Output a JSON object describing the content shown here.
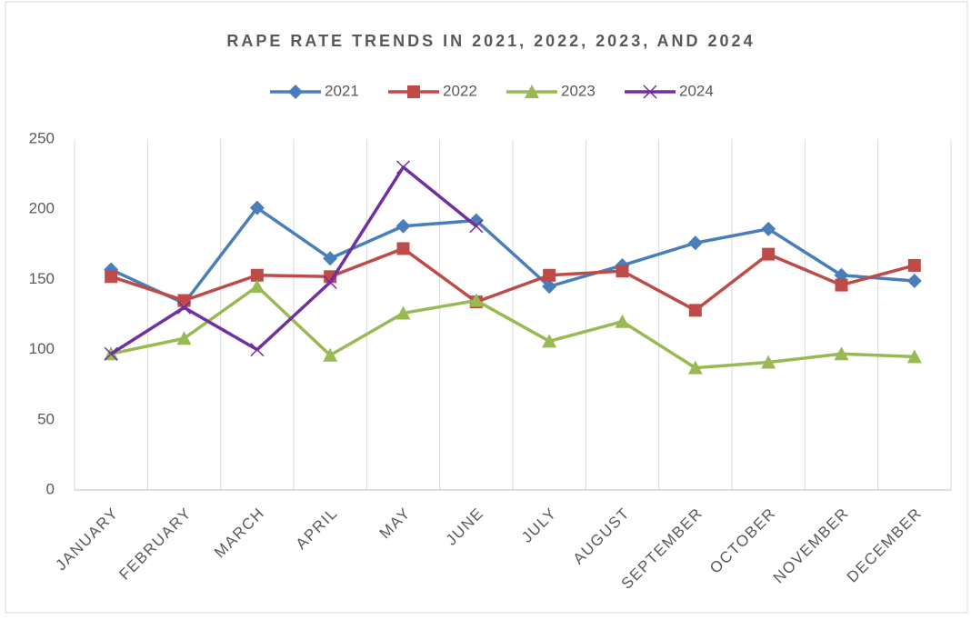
{
  "chart_data": {
    "type": "line",
    "title": "RAPE RATE TRENDS IN 2021, 2022, 2023, AND 2024",
    "categories": [
      "JANUARY",
      "FEBRUARY",
      "MARCH",
      "APRIL",
      "MAY",
      "JUNE",
      "JULY",
      "AUGUST",
      "SEPTEMBER",
      "OCTOBER",
      "NOVEMBER",
      "DECEMBER"
    ],
    "series": [
      {
        "name": "2021",
        "color": "#4a7ebb",
        "marker": "diamond",
        "values": [
          157,
          133,
          201,
          165,
          188,
          192,
          145,
          160,
          176,
          186,
          153,
          149
        ]
      },
      {
        "name": "2022",
        "color": "#be4b48",
        "marker": "square",
        "values": [
          152,
          135,
          153,
          152,
          172,
          134,
          153,
          156,
          128,
          168,
          146,
          160
        ]
      },
      {
        "name": "2023",
        "color": "#98b954",
        "marker": "triangle",
        "values": [
          97,
          108,
          145,
          96,
          126,
          135,
          106,
          120,
          87,
          91,
          97,
          95
        ]
      },
      {
        "name": "2024",
        "color": "#7030a0",
        "marker": "x",
        "values": [
          97,
          130,
          100,
          148,
          230,
          188,
          null,
          null,
          null,
          null,
          null,
          null
        ]
      }
    ],
    "ylim": [
      0,
      250
    ],
    "yticks": [
      0,
      50,
      100,
      150,
      200,
      250
    ],
    "grid": "x",
    "legend": "top"
  }
}
